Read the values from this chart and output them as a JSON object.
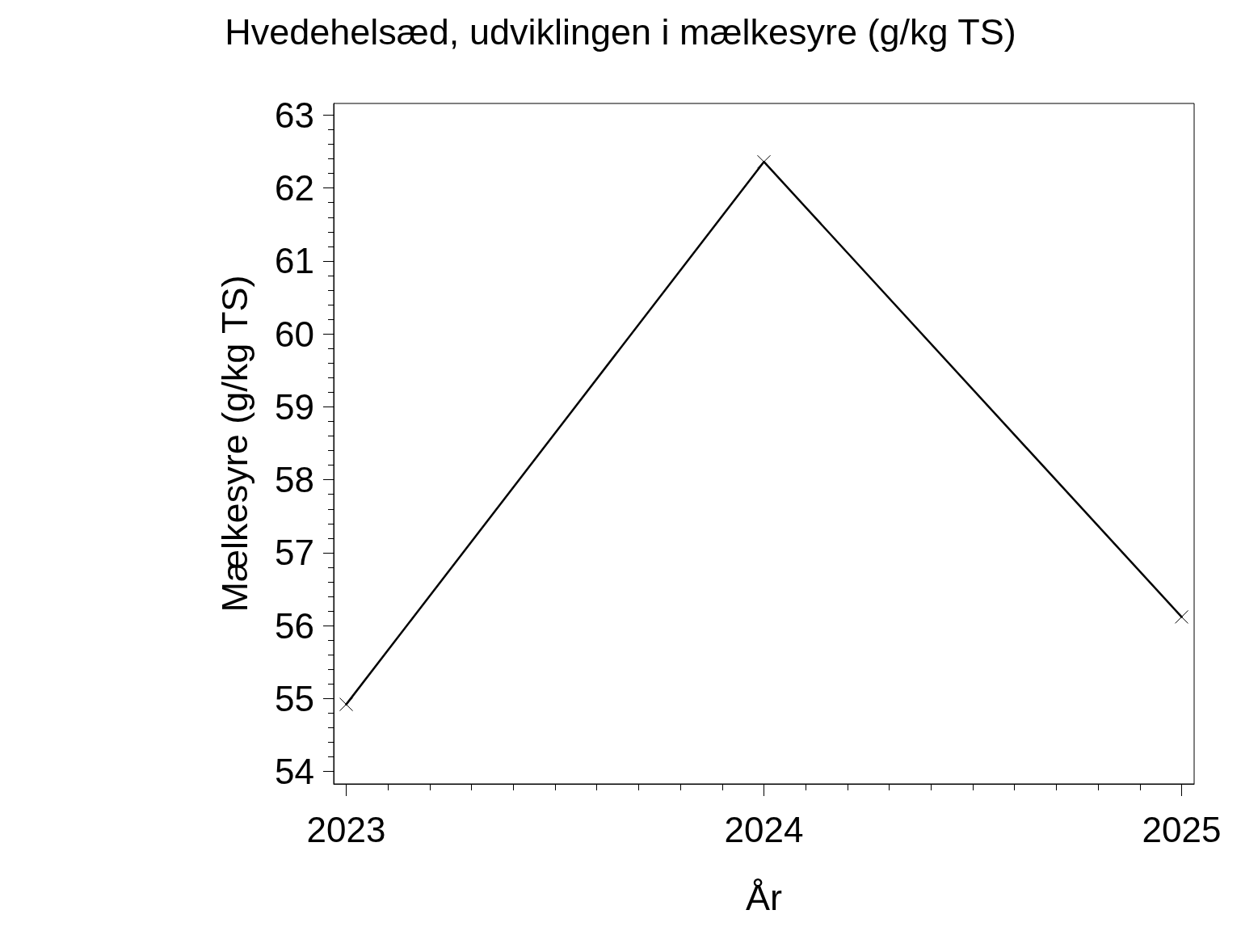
{
  "chart_data": {
    "type": "line",
    "title": "Hvedehelsæd, udviklingen i mælkesyre (g/kg TS)",
    "xlabel": "År",
    "ylabel": "Mælkesyre (g/kg TS)",
    "x": [
      2023,
      2024,
      2025
    ],
    "series": [
      {
        "color": "#000000",
        "values": [
          54.92,
          62.36,
          56.12
        ]
      }
    ],
    "marker": "cross",
    "line_style": "solid",
    "xlim": [
      2022.97,
      2025.03
    ],
    "ylim": [
      53.83,
      63.16
    ],
    "xticks": [
      2023,
      {
        "value": 2023.1,
        "label": null
      },
      {
        "value": 2023.2,
        "label": null
      },
      {
        "value": 2023.3,
        "label": null
      },
      {
        "value": 2023.4,
        "label": null
      },
      {
        "value": 2023.5,
        "label": null
      },
      {
        "value": 2023.6,
        "label": null
      },
      {
        "value": 2023.7,
        "label": null
      },
      {
        "value": 2023.8,
        "label": null
      },
      {
        "value": 2023.9,
        "label": null
      },
      2024,
      {
        "value": 2024.1,
        "label": null
      },
      {
        "value": 2024.2,
        "label": null
      },
      {
        "value": 2024.3,
        "label": null
      },
      {
        "value": 2024.4,
        "label": null
      },
      {
        "value": 2024.5,
        "label": null
      },
      {
        "value": 2024.6,
        "label": null
      },
      {
        "value": 2024.7,
        "label": null
      },
      {
        "value": 2024.8,
        "label": null
      },
      {
        "value": 2024.9,
        "label": null
      },
      2025
    ],
    "yticks": [
      54,
      {
        "value": 54.2,
        "label": null
      },
      {
        "value": 54.4,
        "label": null
      },
      {
        "value": 54.6,
        "label": null
      },
      {
        "value": 54.8,
        "label": null
      },
      55,
      {
        "value": 55.2,
        "label": null
      },
      {
        "value": 55.4,
        "label": null
      },
      {
        "value": 55.6,
        "label": null
      },
      {
        "value": 55.8,
        "label": null
      },
      56,
      {
        "value": 56.2,
        "label": null
      },
      {
        "value": 56.4,
        "label": null
      },
      {
        "value": 56.6,
        "label": null
      },
      {
        "value": 56.8,
        "label": null
      },
      57,
      {
        "value": 57.2,
        "label": null
      },
      {
        "value": 57.4,
        "label": null
      },
      {
        "value": 57.6,
        "label": null
      },
      {
        "value": 57.8,
        "label": null
      },
      58,
      {
        "value": 58.2,
        "label": null
      },
      {
        "value": 58.4,
        "label": null
      },
      {
        "value": 58.6,
        "label": null
      },
      {
        "value": 58.8,
        "label": null
      },
      59,
      {
        "value": 59.2,
        "label": null
      },
      {
        "value": 59.4,
        "label": null
      },
      {
        "value": 59.6,
        "label": null
      },
      {
        "value": 59.8,
        "label": null
      },
      60,
      {
        "value": 60.2,
        "label": null
      },
      {
        "value": 60.4,
        "label": null
      },
      {
        "value": 60.6,
        "label": null
      },
      {
        "value": 60.8,
        "label": null
      },
      61,
      {
        "value": 61.2,
        "label": null
      },
      {
        "value": 61.4,
        "label": null
      },
      {
        "value": 61.6,
        "label": null
      },
      {
        "value": 61.8,
        "label": null
      },
      62,
      {
        "value": 62.2,
        "label": null
      },
      {
        "value": 62.4,
        "label": null
      },
      {
        "value": 62.6,
        "label": null
      },
      {
        "value": 62.8,
        "label": null
      },
      63
    ]
  }
}
